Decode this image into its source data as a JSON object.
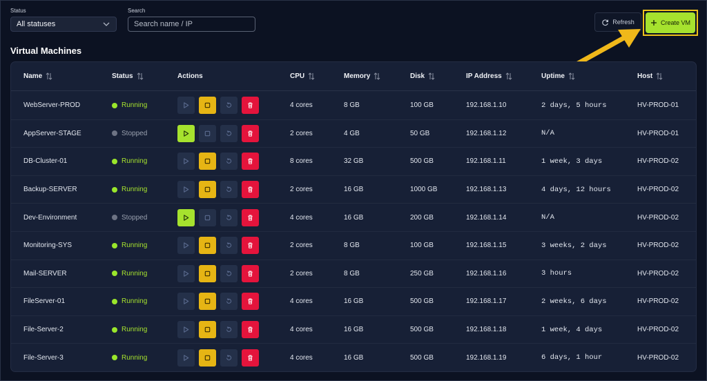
{
  "filters": {
    "status_label": "Status",
    "status_value": "All statuses",
    "search_label": "Search",
    "search_placeholder": "Search name / IP"
  },
  "toolbar": {
    "refresh_label": "Refresh",
    "create_label": "Create VM",
    "highlight_color": "#f0c21a",
    "accent": "#a6e22e"
  },
  "section_title": "Virtual Machines",
  "columns": {
    "name": "Name",
    "status": "Status",
    "actions": "Actions",
    "cpu": "CPU",
    "memory": "Memory",
    "disk": "Disk",
    "ip": "IP Address",
    "uptime": "Uptime",
    "host": "Host"
  },
  "vms": [
    {
      "name": "WebServer-PROD",
      "status": "Running",
      "cpu": "4 cores",
      "memory": "8 GB",
      "disk": "100 GB",
      "ip": "192.168.1.10",
      "uptime": "2 days, 5 hours",
      "host": "HV-PROD-01"
    },
    {
      "name": "AppServer-STAGE",
      "status": "Stopped",
      "cpu": "2 cores",
      "memory": "4 GB",
      "disk": "50 GB",
      "ip": "192.168.1.12",
      "uptime": "N/A",
      "host": "HV-PROD-01"
    },
    {
      "name": "DB-Cluster-01",
      "status": "Running",
      "cpu": "8 cores",
      "memory": "32 GB",
      "disk": "500 GB",
      "ip": "192.168.1.11",
      "uptime": "1 week, 3 days",
      "host": "HV-PROD-02"
    },
    {
      "name": "Backup-SERVER",
      "status": "Running",
      "cpu": "2 cores",
      "memory": "16 GB",
      "disk": "1000 GB",
      "ip": "192.168.1.13",
      "uptime": "4 days, 12 hours",
      "host": "HV-PROD-02"
    },
    {
      "name": "Dev-Environment",
      "status": "Stopped",
      "cpu": "4 cores",
      "memory": "16 GB",
      "disk": "200 GB",
      "ip": "192.168.1.14",
      "uptime": "N/A",
      "host": "HV-PROD-02"
    },
    {
      "name": "Monitoring-SYS",
      "status": "Running",
      "cpu": "2 cores",
      "memory": "8 GB",
      "disk": "100 GB",
      "ip": "192.168.1.15",
      "uptime": "3 weeks, 2 days",
      "host": "HV-PROD-02"
    },
    {
      "name": "Mail-SERVER",
      "status": "Running",
      "cpu": "2 cores",
      "memory": "8 GB",
      "disk": "250 GB",
      "ip": "192.168.1.16",
      "uptime": "3 hours",
      "host": "HV-PROD-02"
    },
    {
      "name": "FileServer-01",
      "status": "Running",
      "cpu": "4 cores",
      "memory": "16 GB",
      "disk": "500 GB",
      "ip": "192.168.1.17",
      "uptime": "2 weeks, 6 days",
      "host": "HV-PROD-02"
    },
    {
      "name": "File-Server-2",
      "status": "Running",
      "cpu": "4 cores",
      "memory": "16 GB",
      "disk": "500 GB",
      "ip": "192.168.1.18",
      "uptime": "1 week, 4 days",
      "host": "HV-PROD-02"
    },
    {
      "name": "File-Server-3",
      "status": "Running",
      "cpu": "4 cores",
      "memory": "16 GB",
      "disk": "500 GB",
      "ip": "192.168.1.19",
      "uptime": "6 days, 1 hour",
      "host": "HV-PROD-02"
    }
  ],
  "icons": {
    "sort": "sort-arrows-icon",
    "play": "play-icon",
    "stop": "stop-icon",
    "restart": "restart-icon",
    "delete": "trash-icon",
    "refresh": "refresh-icon",
    "plus": "plus-icon",
    "dropdown": "chevron-down-icon"
  }
}
